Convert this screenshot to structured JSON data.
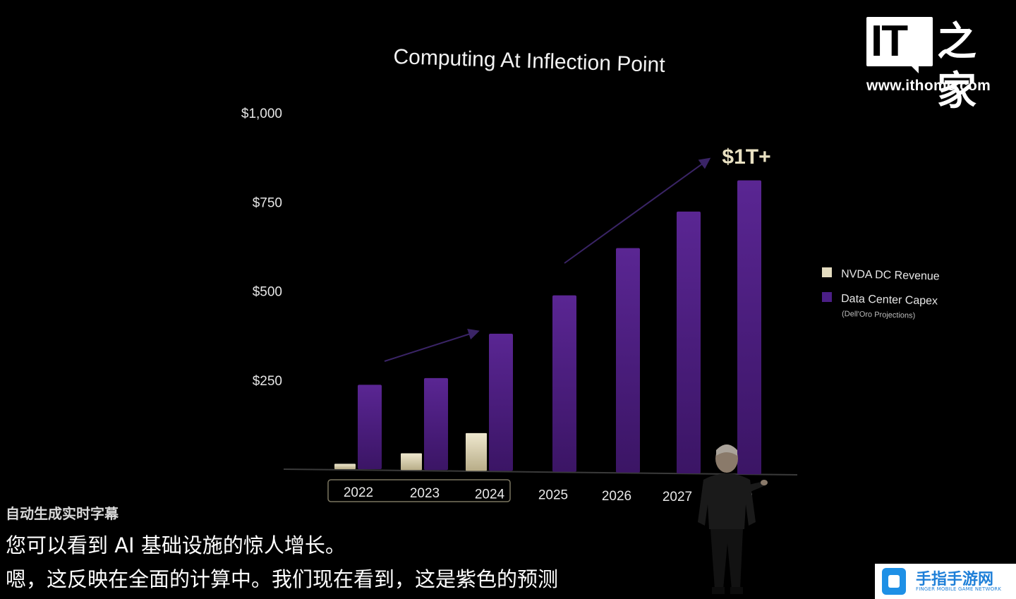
{
  "chart_data": {
    "type": "bar",
    "title": "Computing At Inflection Point",
    "categories": [
      "2022",
      "2023",
      "2024",
      "2025",
      "2026",
      "2027",
      "2028"
    ],
    "series": [
      {
        "name": "NVDA DC Revenue",
        "values": [
          15,
          47,
          106,
          null,
          null,
          null,
          null
        ],
        "color": "#e4dcc0"
      },
      {
        "name": "Data Center Capex",
        "note": "(Dell'Oro Projections)",
        "values": [
          237,
          258,
          385,
          495,
          630,
          735,
          825
        ],
        "color": "#6a2fa8"
      }
    ],
    "y_ticks": [
      "$250",
      "$500",
      "$750",
      "$1,000"
    ],
    "y_tick_values": [
      250,
      500,
      750,
      1000
    ],
    "ylim": [
      0,
      1000
    ],
    "annotation": "$1T+",
    "highlighted_categories": [
      "2022",
      "2023",
      "2024"
    ],
    "grid": false,
    "legend_position": "right"
  },
  "subtitles": {
    "label": "自动生成实时字幕",
    "line1": "您可以看到 AI 基础设施的惊人增长。",
    "line2": "嗯，这反映在全面的计算中。我们现在看到，这是紫色的预测"
  },
  "watermark": {
    "logo_text": "IT",
    "logo_chinese": "之家",
    "url": "www.ithome.com"
  },
  "badge": {
    "title": "手指手游网",
    "subtitle": "FINGER MOBILE GAME NETWORK"
  }
}
